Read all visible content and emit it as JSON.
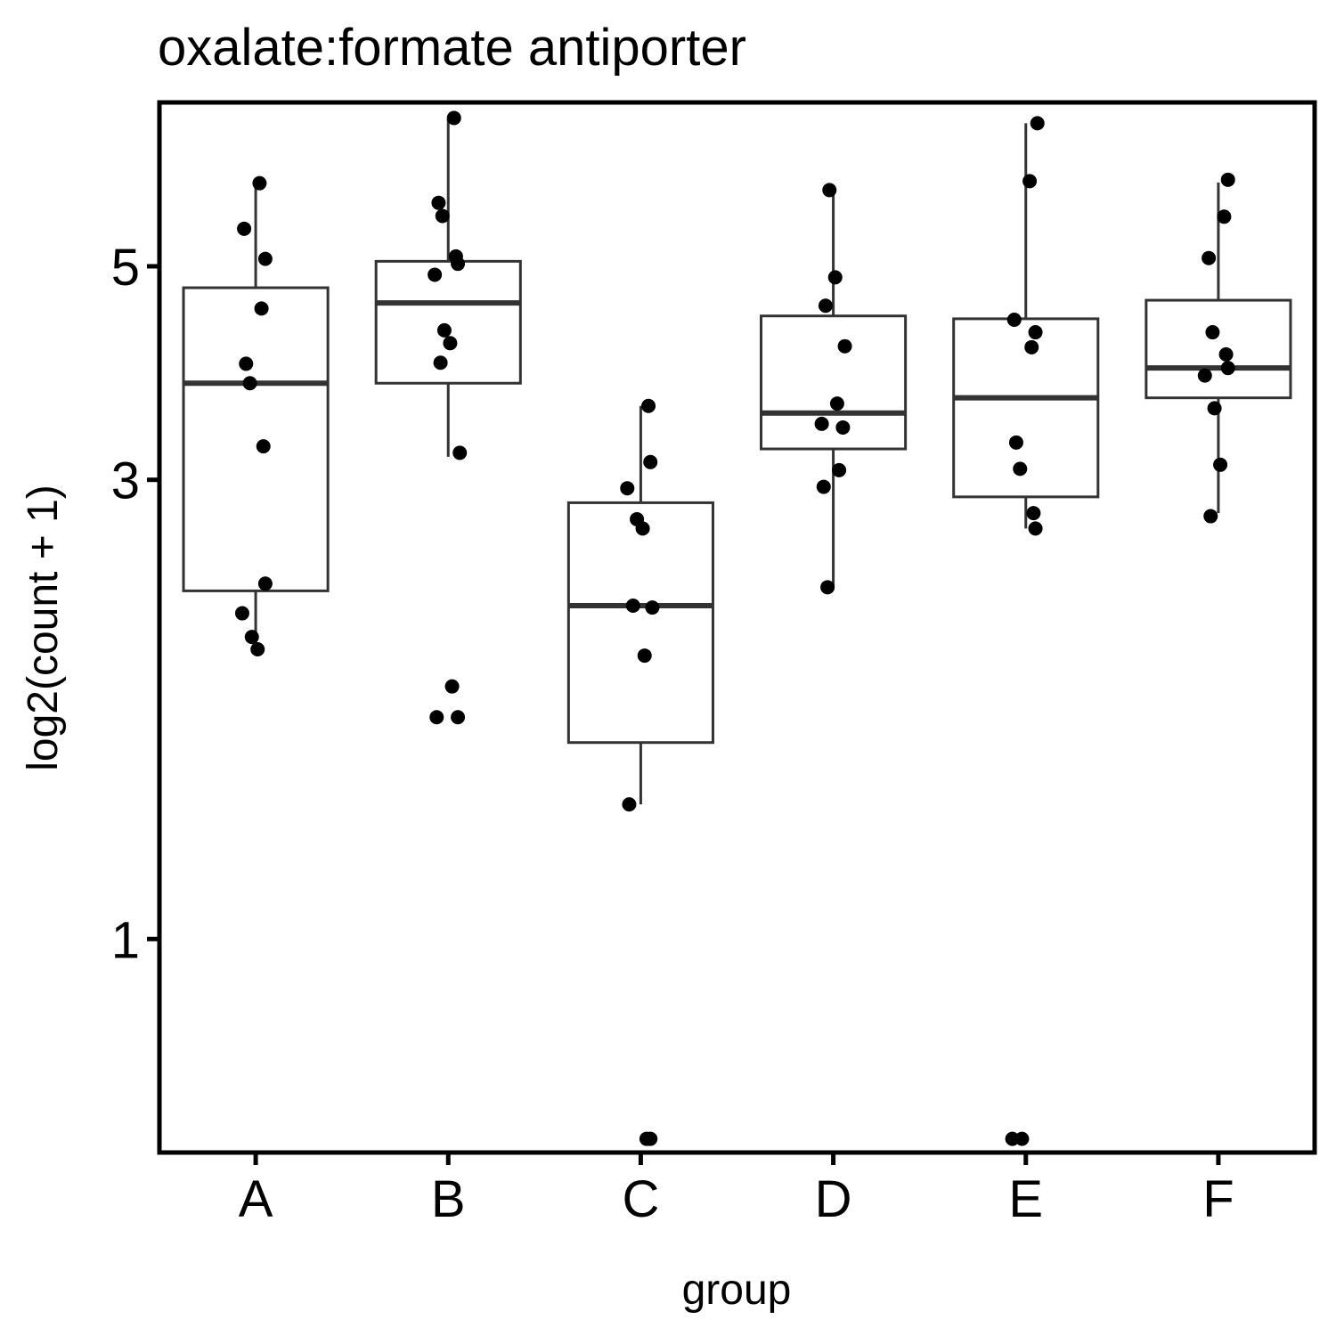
{
  "chart_data": {
    "type": "box",
    "title": "oxalate:formate antiporter",
    "xlabel": "group",
    "ylabel": "log2(count + 1)",
    "yscale": "log",
    "ylim": [
      0.6,
      7.4
    ],
    "yticks": [
      1,
      3,
      5
    ],
    "grid": false,
    "legend": "none",
    "categories": [
      "A",
      "B",
      "C",
      "D",
      "E",
      "F"
    ],
    "boxes": [
      {
        "group": "A",
        "whisker_low": 2.0,
        "q1": 2.3,
        "median": 3.78,
        "q3": 4.75,
        "whisker_high": 6.1
      },
      {
        "group": "B",
        "whisker_low": 3.17,
        "q1": 3.78,
        "median": 4.58,
        "q3": 5.06,
        "whisker_high": 7.13
      },
      {
        "group": "C",
        "whisker_low": 1.38,
        "q1": 1.6,
        "median": 2.22,
        "q3": 2.84,
        "whisker_high": 3.58
      },
      {
        "group": "D",
        "whisker_low": 2.32,
        "q1": 3.23,
        "median": 3.52,
        "q3": 4.44,
        "whisker_high": 6.0
      },
      {
        "group": "E",
        "whisker_low": 2.67,
        "q1": 2.88,
        "median": 3.65,
        "q3": 4.41,
        "whisker_high": 7.04
      },
      {
        "group": "F",
        "whisker_low": 2.77,
        "q1": 3.65,
        "median": 3.92,
        "q3": 4.61,
        "whisker_high": 6.11
      }
    ],
    "points": [
      {
        "group": "A",
        "y": [
          6.1,
          5.47,
          5.09,
          4.52,
          3.96,
          3.78,
          3.25,
          2.34,
          2.18,
          2.06,
          2.0
        ]
      },
      {
        "group": "B",
        "y": [
          7.13,
          5.82,
          5.64,
          5.12,
          5.03,
          4.9,
          4.29,
          4.16,
          3.97,
          3.2,
          1.83,
          1.7,
          1.7
        ]
      },
      {
        "group": "C",
        "y": [
          3.58,
          3.13,
          2.94,
          2.73,
          2.67,
          2.22,
          2.21,
          1.97,
          1.38,
          0.62,
          0.62
        ]
      },
      {
        "group": "D",
        "y": [
          6.0,
          4.87,
          4.55,
          4.13,
          3.6,
          3.43,
          3.4,
          3.07,
          2.95,
          2.32
        ]
      },
      {
        "group": "E",
        "y": [
          7.04,
          6.13,
          4.4,
          4.27,
          4.12,
          3.28,
          3.08,
          2.77,
          2.67,
          0.62,
          0.62
        ]
      },
      {
        "group": "F",
        "y": [
          6.15,
          5.63,
          5.1,
          4.27,
          4.05,
          3.92,
          3.85,
          3.56,
          3.11,
          2.75
        ]
      }
    ]
  }
}
